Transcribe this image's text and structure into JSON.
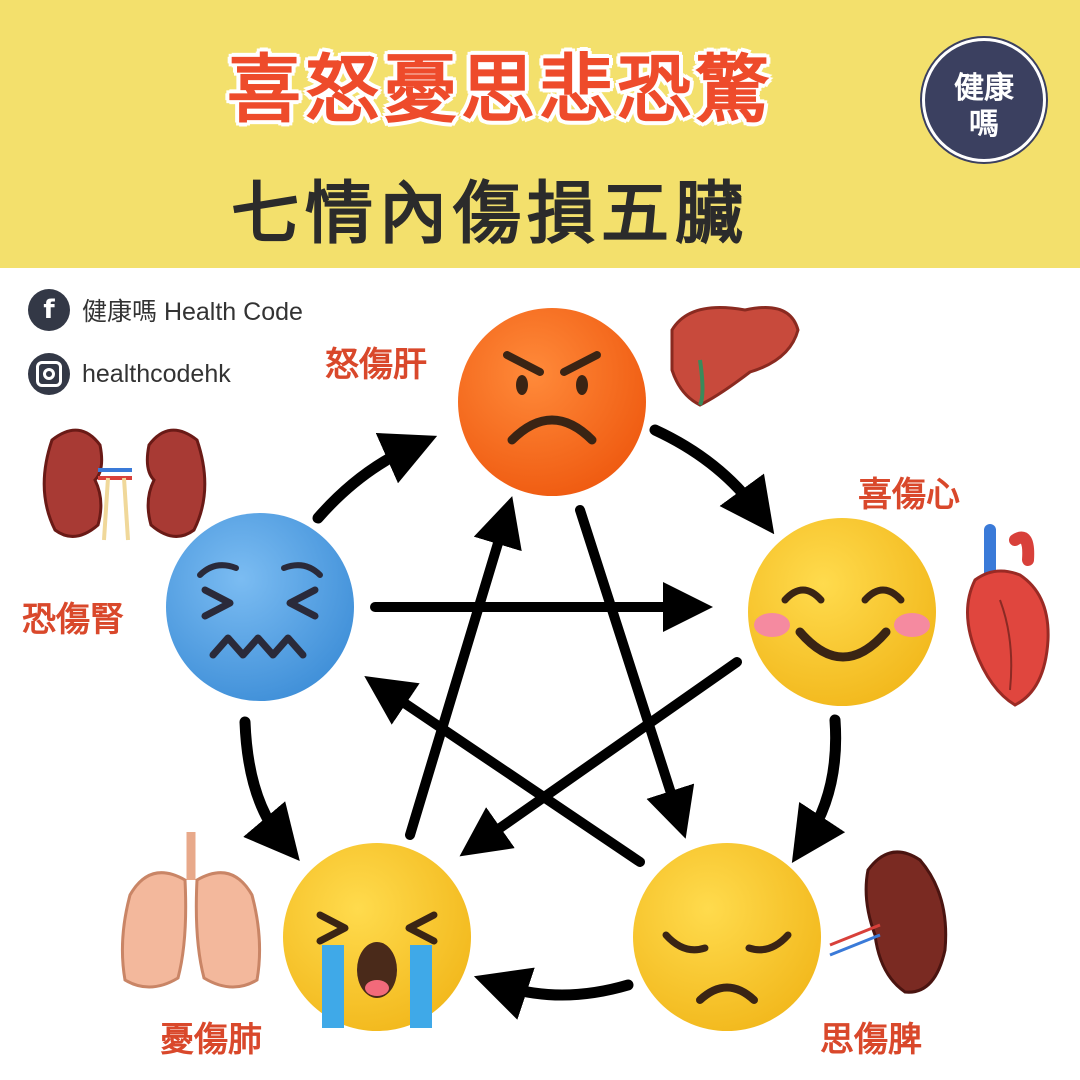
{
  "header": {
    "title": "喜怒憂思悲恐驚",
    "subtitle": "七情內傷損五臟",
    "badge_line1": "健康",
    "badge_line2": "嗎"
  },
  "social": {
    "facebook": "健康嗎 Health Code",
    "instagram": "healthcodehk"
  },
  "emotions": {
    "anger": "怒傷肝",
    "joy": "喜傷心",
    "fear": "恐傷腎",
    "worry": "憂傷肺",
    "thought": "思傷脾"
  },
  "colors": {
    "header_bg": "#f3e06c",
    "title_red": "#ee4b2b",
    "label_red": "#d9482b",
    "angry_face": "#f56a1e",
    "fear_face": "#5aa4e6",
    "happy_face": "#f6c928"
  },
  "icons": [
    "angry-face-icon",
    "smiling-face-icon",
    "worried-face-icon",
    "crying-face-icon",
    "fearful-face-icon",
    "liver-icon",
    "heart-icon",
    "spleen-icon",
    "lungs-icon",
    "kidneys-icon",
    "facebook-icon",
    "instagram-icon"
  ]
}
